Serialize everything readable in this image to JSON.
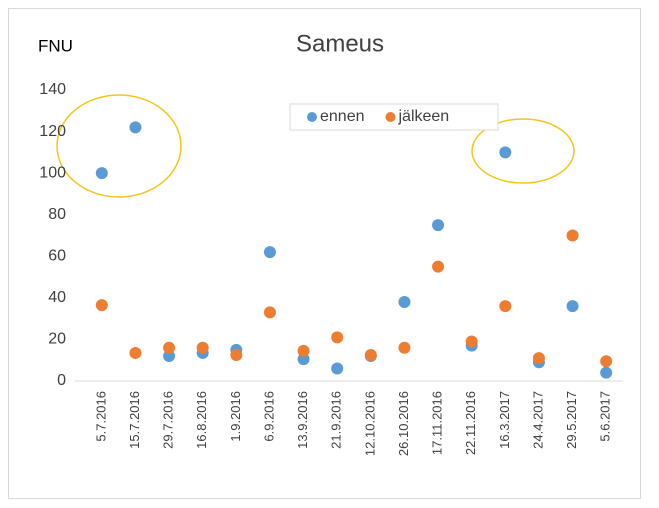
{
  "chart_data": {
    "type": "scatter",
    "title": "Sameus",
    "y_label": "FNU",
    "categories": [
      "5.7.2016",
      "15.7.2016",
      "29.7.2016",
      "16.8.2016",
      "1.9.2016",
      "6.9.2016",
      "13.9.2016",
      "21.9.2016",
      "12.10.2016",
      "26.10.2016",
      "17.11.2016",
      "22.11.2016",
      "16.3.2017",
      "24.4.2017",
      "29.5.2017",
      "5.6.2017"
    ],
    "series": [
      {
        "name": "ennen",
        "color": "#5b9bd5",
        "values": [
          100,
          122,
          12,
          13.5,
          15,
          62,
          10.5,
          6,
          12,
          38,
          75,
          17,
          110,
          9,
          36,
          4
        ]
      },
      {
        "name": "jälkeen",
        "color": "#ed7d31",
        "values": [
          36.5,
          13.5,
          16,
          16,
          12.5,
          33,
          14.5,
          21,
          12.5,
          16,
          55,
          19,
          36,
          11,
          70,
          9.5
        ]
      }
    ],
    "ylim": [
      0,
      140
    ],
    "yticks": [
      0,
      20,
      40,
      60,
      80,
      100,
      120,
      140
    ],
    "grid": false,
    "legend": "top"
  }
}
